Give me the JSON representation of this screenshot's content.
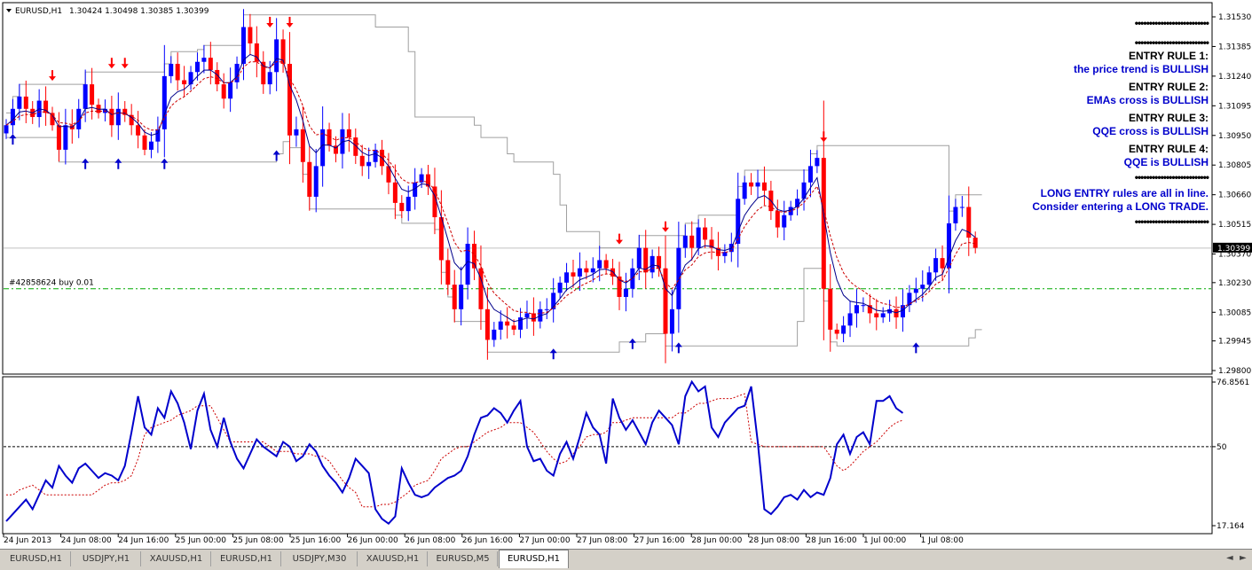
{
  "header": {
    "symbol": "EURUSD,H1",
    "ohlc": "1.30424 1.30498 1.30385 1.30399"
  },
  "order_label": "#42858624 buy 0.01",
  "current_price": "1.30399",
  "rules_panel": {
    "separator": "••••••••••••••••••••••••••",
    "rules": [
      {
        "title": "ENTRY RULE 1:",
        "text": "the price trend is BULLISH"
      },
      {
        "title": "ENTRY RULE 2:",
        "text": "EMAs cross is BULLISH"
      },
      {
        "title": "ENTRY RULE 3:",
        "text": "QQE cross is BULLISH"
      },
      {
        "title": "ENTRY RULE 4:",
        "text": "QQE is BULLISH"
      }
    ],
    "conclusion_line1": "LONG ENTRY rules are all in line.",
    "conclusion_line2": "Consider entering a LONG TRADE."
  },
  "tabs": [
    {
      "label": "EURUSD,H1"
    },
    {
      "label": "USDJPY,H1"
    },
    {
      "label": "XAUUSD,H1"
    },
    {
      "label": "EURUSD,H1"
    },
    {
      "label": "USDJPY,M30"
    },
    {
      "label": "XAUUSD,H1"
    },
    {
      "label": "EURUSD,M5"
    },
    {
      "label": "EURUSD,H1"
    }
  ],
  "active_tab": 7,
  "colors": {
    "bull": "#0000ff",
    "bear": "#ff0000",
    "ema_fast": "#00008b",
    "ema_slow": "#cc0000",
    "channel": "#a0a0a0",
    "qqe_main": "#0000cc",
    "qqe_signal": "#cc0000",
    "order_line": "#00aa00",
    "arrow_up": "#0000cc",
    "arrow_down": "#ff0000"
  },
  "chart_data": [
    {
      "type": "candlestick",
      "ylim": [
        1.298,
        1.3153
      ],
      "y_ticks": [
        "1.31530",
        "1.31385",
        "1.31240",
        "1.31095",
        "1.30950",
        "1.30805",
        "1.30660",
        "1.30515",
        "1.30370",
        "1.30230",
        "1.30085",
        "1.29945",
        "1.29800"
      ],
      "x_labels": [
        "24 Jun 2013",
        "24 Jun 08:00",
        "24 Jun 16:00",
        "25 Jun 00:00",
        "25 Jun 08:00",
        "25 Jun 16:00",
        "26 Jun 00:00",
        "26 Jun 08:00",
        "26 Jun 16:00",
        "27 Jun 00:00",
        "27 Jun 08:00",
        "27 Jun 16:00",
        "28 Jun 00:00",
        "28 Jun 08:00",
        "28 Jun 16:00",
        "1 Jul 00:00",
        "1 Jul 08:00"
      ],
      "current_price": 1.30399,
      "order_price": 1.302,
      "close": [
        1.31,
        1.3108,
        1.3114,
        1.3108,
        1.3104,
        1.3112,
        1.3106,
        1.31,
        1.3088,
        1.31,
        1.3098,
        1.3108,
        1.312,
        1.311,
        1.3106,
        1.3108,
        1.31,
        1.3108,
        1.3105,
        1.31,
        1.3095,
        1.3088,
        1.3092,
        1.3098,
        1.3124,
        1.313,
        1.3122,
        1.312,
        1.3126,
        1.3131,
        1.3133,
        1.3127,
        1.312,
        1.3113,
        1.3121,
        1.313,
        1.3148,
        1.314,
        1.3131,
        1.312,
        1.3126,
        1.3142,
        1.313,
        1.3095,
        1.3098,
        1.3082,
        1.3065,
        1.308,
        1.3098,
        1.309,
        1.3086,
        1.3098,
        1.3094,
        1.3085,
        1.308,
        1.3082,
        1.3088,
        1.308,
        1.3072,
        1.3062,
        1.3058,
        1.3065,
        1.3072,
        1.3076,
        1.307,
        1.3055,
        1.3034,
        1.3022,
        1.301,
        1.3022,
        1.3042,
        1.303,
        1.301,
        1.2995,
        1.3,
        1.3004,
        1.3002,
        1.3,
        1.3006,
        1.3008,
        1.3004,
        1.301,
        1.301,
        1.3018,
        1.3023,
        1.3028,
        1.3026,
        1.303,
        1.3028,
        1.303,
        1.3034,
        1.303,
        1.3026,
        1.3016,
        1.302,
        1.303,
        1.304,
        1.3028,
        1.3036,
        1.303,
        1.2998,
        1.301,
        1.304,
        1.3046,
        1.304,
        1.305,
        1.3044,
        1.304,
        1.3036,
        1.3038,
        1.3042,
        1.3064,
        1.3072,
        1.307,
        1.3072,
        1.3068,
        1.3058,
        1.305,
        1.3056,
        1.306,
        1.3064,
        1.3072,
        1.308,
        1.3084,
        1.302,
        1.3,
        1.2998,
        1.3002,
        1.3008,
        1.3012,
        1.3012,
        1.3008,
        1.3006,
        1.3008,
        1.301,
        1.3006,
        1.3012,
        1.3018,
        1.302,
        1.3022,
        1.3028,
        1.3035,
        1.303,
        1.3052,
        1.306,
        1.306,
        1.3045,
        1.304
      ]
    },
    {
      "type": "line",
      "ylim": [
        17.164,
        76.8561
      ],
      "y_ticks": [
        "76.8561",
        "50",
        "17.164"
      ],
      "level": 50,
      "series": [
        {
          "values": [
            19,
            22,
            25,
            28,
            24,
            30,
            36,
            33,
            42,
            38,
            35,
            41,
            43,
            40,
            37,
            39,
            38,
            36,
            42,
            56,
            71,
            58,
            55,
            66,
            62,
            73,
            68,
            60,
            49,
            65,
            72,
            57,
            50,
            62,
            52,
            45,
            41,
            47,
            53,
            50,
            48,
            46,
            52,
            50,
            44,
            46,
            51,
            48,
            42,
            38,
            35,
            31,
            37,
            45,
            42,
            39,
            24,
            20,
            18,
            21,
            41,
            35,
            30,
            29,
            30,
            33,
            35,
            37,
            38,
            40,
            46,
            55,
            62,
            63,
            66,
            64,
            60,
            65,
            69,
            50,
            44,
            45,
            40,
            38,
            47,
            52,
            45,
            54,
            64,
            58,
            55,
            43,
            70,
            62,
            57,
            61,
            56,
            51,
            60,
            65,
            62,
            59,
            51,
            71,
            77,
            73,
            75,
            58,
            54,
            60,
            63,
            66,
            67,
            75,
            52,
            24,
            22,
            25,
            29,
            30,
            28,
            32,
            29,
            31,
            30,
            37,
            51,
            55,
            47,
            54,
            56,
            51,
            69,
            69,
            71,
            66,
            64
          ]
        },
        {
          "values": [
            30,
            30,
            32,
            33,
            34,
            32,
            30,
            30,
            30,
            30,
            30,
            30,
            30,
            30,
            32,
            34,
            35,
            35,
            36,
            38,
            45,
            55,
            58,
            59,
            60,
            61,
            63,
            64,
            65,
            67,
            67,
            67,
            62,
            57,
            52,
            52,
            52,
            52,
            52,
            52,
            50,
            48,
            48,
            48,
            47,
            47,
            47,
            46,
            46,
            44,
            40,
            36,
            33,
            31,
            25,
            25,
            25,
            26,
            26,
            27,
            29,
            31,
            34,
            35,
            36,
            40,
            45,
            47,
            49,
            50,
            50,
            52,
            54,
            56,
            57,
            58,
            60,
            60,
            60,
            58,
            56,
            52,
            48,
            45,
            43,
            44,
            47,
            50,
            54,
            55,
            55,
            56,
            60,
            60,
            61,
            62,
            62,
            62,
            62,
            62,
            62,
            62,
            64,
            64,
            66,
            68,
            68,
            69,
            70,
            70,
            70,
            71,
            72,
            52,
            51,
            50,
            50,
            50,
            50,
            50,
            50,
            50,
            50,
            50,
            50,
            46,
            42,
            40,
            42,
            45,
            48,
            50,
            52,
            55,
            58,
            60,
            61
          ]
        }
      ]
    }
  ]
}
